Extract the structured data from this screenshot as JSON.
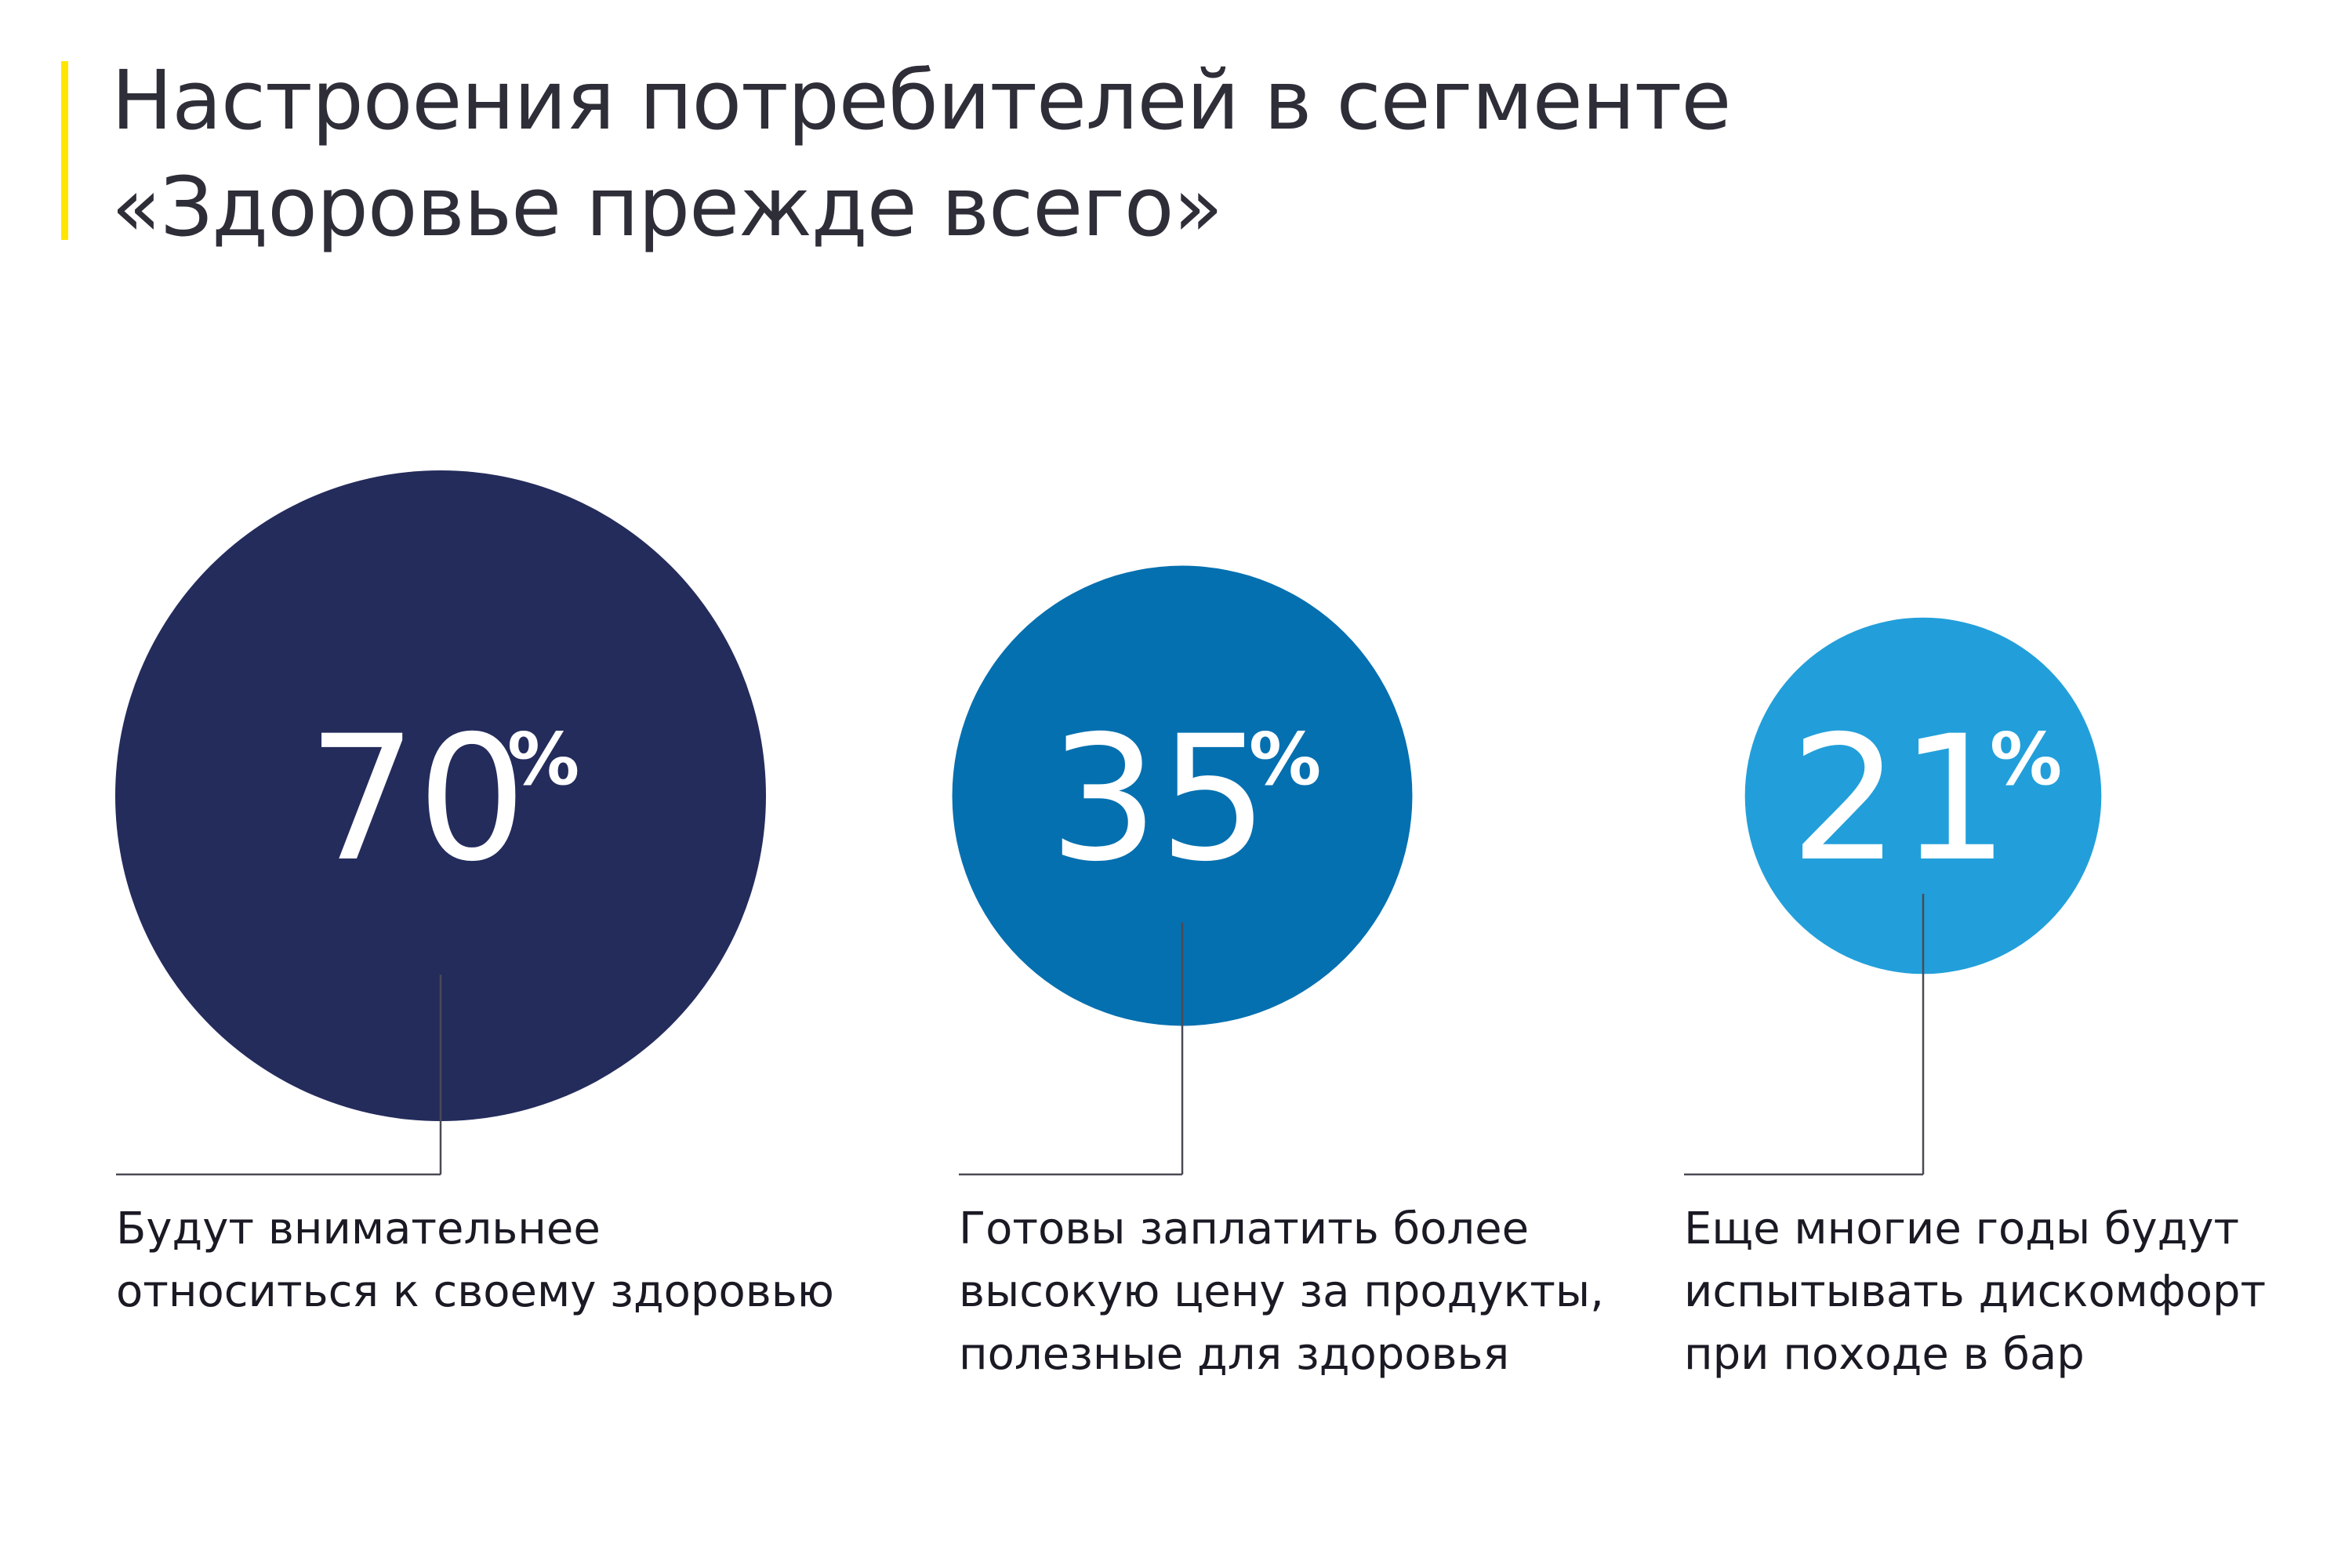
{
  "title": {
    "line1": "Настроения потребителей в сегменте",
    "line2": "«Здоровье прежде всего»"
  },
  "colors": {
    "accent": "#ffe600",
    "dark_navy": "#242c5c",
    "mid_blue": "#0570b0",
    "light_blue": "#229fda",
    "text": "#2e2e38"
  },
  "chart_data": {
    "type": "bubble",
    "unit": "%",
    "items": [
      {
        "value": 70,
        "label": "70",
        "suffix": "%",
        "color": "#242c5c",
        "description": [
          "Будут внимательнее",
          "относиться к своему здоровью"
        ]
      },
      {
        "value": 35,
        "label": "35",
        "suffix": "%",
        "color": "#0570b0",
        "description": [
          "Готовы заплатить более",
          "высокую цену за продукты,",
          "полезные для здоровья"
        ]
      },
      {
        "value": 21,
        "label": "21",
        "suffix": "%",
        "color": "#229fda",
        "description": [
          "Еще многие годы будут",
          "испытывать дискомфорт",
          "при походе в бар"
        ]
      }
    ]
  }
}
